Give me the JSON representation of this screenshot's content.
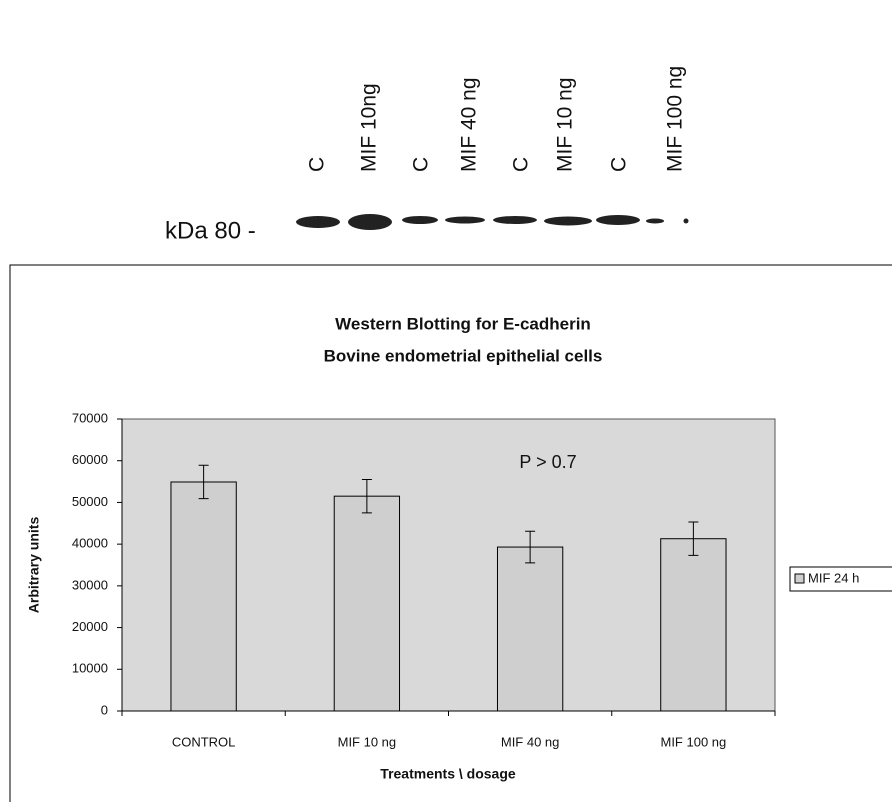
{
  "blot": {
    "marker": "kDa 80 -",
    "lanes": [
      "C",
      "MIF 10ng",
      "C",
      "MIF 40 ng",
      "C",
      "MIF 10 ng",
      "C",
      "MIF 100 ng"
    ]
  },
  "chart_data": {
    "type": "bar",
    "title": [
      "Western Blotting for E-cadherin",
      "Bovine endometrial epithelial cells"
    ],
    "y_label": "Arbitrary units",
    "x_label": "Treatments \\ dosage",
    "annotation": "P > 0.7",
    "categories": [
      "CONTROL",
      "MIF 10 ng",
      "MIF 40 ng",
      "MIF 100 ng"
    ],
    "series": [
      {
        "name": "MIF 24 h",
        "color": "#cfcfcf",
        "values": [
          54900,
          51500,
          39300,
          41300
        ],
        "errors": [
          4000,
          4000,
          3800,
          4000
        ]
      }
    ],
    "ylim": [
      0,
      70000
    ],
    "yticks": [
      0,
      10000,
      20000,
      30000,
      40000,
      50000,
      60000,
      70000
    ],
    "legend": "right"
  }
}
